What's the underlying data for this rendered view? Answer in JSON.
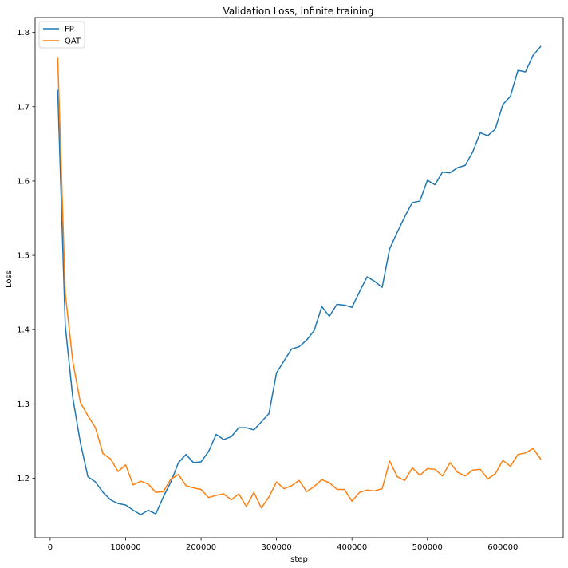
{
  "chart_data": {
    "type": "line",
    "title": "Validation Loss, infinite training",
    "xlabel": "step",
    "ylabel": "Loss",
    "xlim": [
      -20000,
      680000
    ],
    "ylim": [
      1.12,
      1.82
    ],
    "xticks": [
      0,
      100000,
      200000,
      300000,
      400000,
      500000,
      600000
    ],
    "xtick_labels": [
      "0",
      "100000",
      "200000",
      "300000",
      "400000",
      "500000",
      "600000"
    ],
    "yticks": [
      1.2,
      1.3,
      1.4,
      1.5,
      1.6,
      1.7,
      1.8
    ],
    "ytick_labels": [
      "1.2",
      "1.3",
      "1.4",
      "1.5",
      "1.6",
      "1.7",
      "1.8"
    ],
    "grid": false,
    "legend_position": "top-left",
    "series": [
      {
        "name": "FP",
        "color": "#1f77b4",
        "x": [
          10000,
          20000,
          30000,
          40000,
          50000,
          60000,
          70000,
          80000,
          90000,
          100000,
          110000,
          120000,
          130000,
          140000,
          150000,
          160000,
          170000,
          180000,
          190000,
          200000,
          210000,
          220000,
          230000,
          240000,
          250000,
          260000,
          270000,
          280000,
          290000,
          300000,
          310000,
          320000,
          330000,
          340000,
          350000,
          360000,
          370000,
          380000,
          390000,
          400000,
          410000,
          420000,
          430000,
          440000,
          450000,
          460000,
          470000,
          480000,
          490000,
          500000,
          510000,
          520000,
          530000,
          540000,
          550000,
          560000,
          570000,
          580000,
          590000,
          600000,
          610000,
          620000,
          630000,
          640000,
          650000
        ],
        "values": [
          1.722,
          1.405,
          1.308,
          1.248,
          1.202,
          1.195,
          1.181,
          1.171,
          1.166,
          1.164,
          1.157,
          1.151,
          1.157,
          1.152,
          1.175,
          1.195,
          1.221,
          1.232,
          1.221,
          1.222,
          1.236,
          1.259,
          1.252,
          1.256,
          1.268,
          1.268,
          1.265,
          1.276,
          1.287,
          1.342,
          1.358,
          1.374,
          1.377,
          1.386,
          1.399,
          1.431,
          1.418,
          1.434,
          1.433,
          1.43,
          1.451,
          1.471,
          1.465,
          1.457,
          1.509,
          1.531,
          1.552,
          1.571,
          1.573,
          1.601,
          1.595,
          1.612,
          1.611,
          1.618,
          1.621,
          1.639,
          1.665,
          1.661,
          1.67,
          1.703,
          1.714,
          1.749,
          1.747,
          1.769,
          1.781
        ]
      },
      {
        "name": "QAT",
        "color": "#ff7f0e",
        "x": [
          10000,
          20000,
          30000,
          40000,
          50000,
          60000,
          70000,
          80000,
          90000,
          100000,
          110000,
          120000,
          130000,
          140000,
          150000,
          160000,
          170000,
          180000,
          190000,
          200000,
          210000,
          220000,
          230000,
          240000,
          250000,
          260000,
          270000,
          280000,
          290000,
          300000,
          310000,
          320000,
          330000,
          340000,
          350000,
          360000,
          370000,
          380000,
          390000,
          400000,
          410000,
          420000,
          430000,
          440000,
          450000,
          460000,
          470000,
          480000,
          490000,
          500000,
          510000,
          520000,
          530000,
          540000,
          550000,
          560000,
          570000,
          580000,
          590000,
          600000,
          610000,
          620000,
          630000,
          640000,
          650000
        ],
        "values": [
          1.765,
          1.449,
          1.357,
          1.302,
          1.284,
          1.268,
          1.233,
          1.226,
          1.209,
          1.218,
          1.191,
          1.196,
          1.192,
          1.181,
          1.182,
          1.199,
          1.205,
          1.19,
          1.187,
          1.185,
          1.174,
          1.177,
          1.179,
          1.171,
          1.179,
          1.162,
          1.181,
          1.16,
          1.175,
          1.195,
          1.186,
          1.19,
          1.197,
          1.182,
          1.189,
          1.198,
          1.194,
          1.185,
          1.185,
          1.169,
          1.181,
          1.184,
          1.183,
          1.186,
          1.223,
          1.202,
          1.197,
          1.214,
          1.204,
          1.213,
          1.212,
          1.203,
          1.221,
          1.208,
          1.203,
          1.211,
          1.212,
          1.199,
          1.206,
          1.224,
          1.216,
          1.232,
          1.234,
          1.24,
          1.226
        ]
      }
    ]
  }
}
